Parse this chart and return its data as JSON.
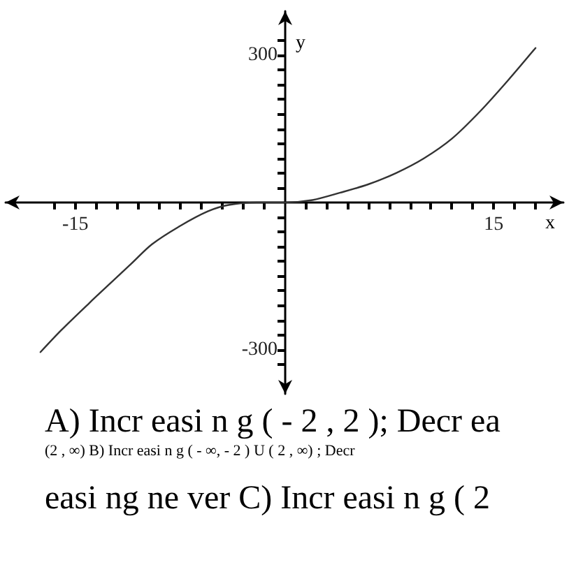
{
  "chart_data": {
    "type": "line",
    "xlabel": "x",
    "ylabel": "y",
    "x": [
      -17.5,
      -16,
      -14,
      -12.5,
      -11,
      -9.5,
      -7.5,
      -5.5,
      -4,
      -2,
      0,
      2,
      4,
      6,
      8,
      10,
      12,
      14,
      16,
      18
    ],
    "values": [
      -305,
      -260,
      -205,
      -165,
      -125,
      -85,
      -48,
      -18,
      -5,
      0,
      0,
      5,
      20,
      37,
      60,
      90,
      130,
      185,
      248,
      315
    ],
    "color": "#333333",
    "marker": "none",
    "line_style": "solid",
    "xlim": [
      -20,
      20
    ],
    "xticks": [
      {
        "value": -16.5,
        "label": null
      },
      -15,
      {
        "value": -13.5,
        "label": null
      },
      {
        "value": -12,
        "label": null
      },
      {
        "value": -10.5,
        "label": null
      },
      {
        "value": -9,
        "label": null
      },
      {
        "value": -7.5,
        "label": null
      },
      {
        "value": -6,
        "label": null
      },
      {
        "value": -4.5,
        "label": null
      },
      {
        "value": -3,
        "label": null
      },
      {
        "value": -1.5,
        "label": null
      },
      {
        "value": 1.5,
        "label": null
      },
      {
        "value": 3,
        "label": null
      },
      {
        "value": 4.5,
        "label": null
      },
      {
        "value": 6,
        "label": null
      },
      {
        "value": 7.5,
        "label": null
      },
      {
        "value": 9,
        "label": null
      },
      {
        "value": 10.5,
        "label": null
      },
      {
        "value": 12,
        "label": null
      },
      {
        "value": 13.5,
        "label": null
      },
      15,
      {
        "value": 16.5,
        "label": null
      },
      {
        "value": 18,
        "label": null
      }
    ],
    "ylim": [
      -390,
      390
    ],
    "yticks": [
      {
        "value": -330,
        "label": null
      },
      -300,
      {
        "value": -270,
        "label": null
      },
      {
        "value": -240,
        "label": null
      },
      {
        "value": -210,
        "label": null
      },
      {
        "value": -180,
        "label": null
      },
      {
        "value": -150,
        "label": null
      },
      {
        "value": -120,
        "label": null
      },
      {
        "value": -90,
        "label": null
      },
      {
        "value": -60,
        "label": null
      },
      {
        "value": -30,
        "label": null
      },
      {
        "value": 30,
        "label": null
      },
      {
        "value": 60,
        "label": null
      },
      {
        "value": 90,
        "label": null
      },
      {
        "value": 120,
        "label": null
      },
      {
        "value": 150,
        "label": null
      },
      {
        "value": 180,
        "label": null
      },
      {
        "value": 210,
        "label": null
      },
      {
        "value": 240,
        "label": null
      },
      {
        "value": 270,
        "label": null
      },
      300,
      {
        "value": 330,
        "label": null
      }
    ],
    "annotations": [
      "A) Incr easi n g ( - 2 , 2 ); Decr ea",
      "(2 , ∞) B) Incr easi n g ( - ∞, - 2 ) U ( 2 , ∞) ; Decr",
      "easi ng ne ver C) Incr easi n g ( 2"
    ]
  }
}
